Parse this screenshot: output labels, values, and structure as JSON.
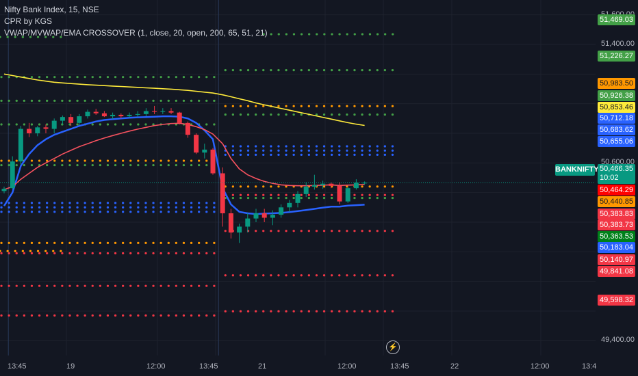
{
  "legend": {
    "symbol": "Nifty Bank Index, 15, NSE",
    "indicator1": "CPR by KGS",
    "indicator2": "VWAP/MVWAP/EMA CROSSOVER (1, close, 20, open, 200, 65, 51, 21)"
  },
  "symbol_tag": "BANKNIFTY",
  "current_price": {
    "value": "50,466.35",
    "countdown": "10:02"
  },
  "price_axis_labels": [
    "51,600.00",
    "51,400.00",
    "50,600.00",
    "49,400.00"
  ],
  "time_axis_labels": [
    "13:45",
    "19",
    "12:00",
    "13:45",
    "21",
    "12:00",
    "13:45",
    "22",
    "12:00",
    "13:4"
  ],
  "price_tags": [
    {
      "label": "51,469.03",
      "bg": "#43a047",
      "fg": "#ffffff"
    },
    {
      "label": "51,226.27",
      "bg": "#43a047",
      "fg": "#ffffff"
    },
    {
      "label": "50,983.50",
      "bg": "#ff9800",
      "fg": "#131722"
    },
    {
      "label": "50,926.38",
      "bg": "#43a047",
      "fg": "#ffffff"
    },
    {
      "label": "50,853.46",
      "bg": "#ffeb3b",
      "fg": "#131722"
    },
    {
      "label": "50,712.18",
      "bg": "#2962ff",
      "fg": "#ffffff"
    },
    {
      "label": "50,683.62",
      "bg": "#2962ff",
      "fg": "#ffffff"
    },
    {
      "label": "50,655.06",
      "bg": "#2962ff",
      "fg": "#ffffff"
    },
    {
      "label": "50,464.29",
      "bg": "#ff0000",
      "fg": "#ffffff"
    },
    {
      "label": "50,440.85",
      "bg": "#ff9800",
      "fg": "#131722"
    },
    {
      "label": "50,383.83",
      "bg": "#f23645",
      "fg": "#ffffff"
    },
    {
      "label": "50,383.73",
      "bg": "#f23645",
      "fg": "#ffffff"
    },
    {
      "label": "50,363.53",
      "bg": "#00801a",
      "fg": "#ffffff"
    },
    {
      "label": "50,183.04",
      "bg": "#2962ff",
      "fg": "#ffffff"
    },
    {
      "label": "50,140.97",
      "bg": "#f23645",
      "fg": "#ffffff"
    },
    {
      "label": "49,841.08",
      "bg": "#f23645",
      "fg": "#ffffff"
    },
    {
      "label": "49,598.32",
      "bg": "#f23645",
      "fg": "#ffffff"
    }
  ],
  "chart_data": {
    "type": "candlestick",
    "ylim": [
      49300,
      51700
    ],
    "bar_times": [
      "18 13:45",
      "19 09:15",
      "19 09:30",
      "19 09:45",
      "19 10:00",
      "19 10:15",
      "19 10:30",
      "19 10:45",
      "19 11:00",
      "19 11:15",
      "19 11:30",
      "19 11:45",
      "19 12:00",
      "19 12:15",
      "19 12:30",
      "19 12:45",
      "19 13:00",
      "19 13:15",
      "19 13:30",
      "19 13:45",
      "19 14:00",
      "19 14:15",
      "19 14:30",
      "19 14:45",
      "19 15:00",
      "19 15:15",
      "21 09:15",
      "21 09:30",
      "21 09:45",
      "21 10:00",
      "21 10:15",
      "21 10:30",
      "21 10:45",
      "21 11:00",
      "21 11:15",
      "21 11:30",
      "21 11:45",
      "21 12:00",
      "21 12:15",
      "21 12:30",
      "21 12:45",
      "21 13:00",
      "21 13:15",
      "21 13:30"
    ],
    "ohlc": [
      [
        50410,
        50440,
        50395,
        50425
      ],
      [
        50430,
        50645,
        50420,
        50610
      ],
      [
        50610,
        50850,
        50590,
        50830
      ],
      [
        50830,
        50870,
        50775,
        50800
      ],
      [
        50800,
        50850,
        50780,
        50840
      ],
      [
        50840,
        50860,
        50800,
        50830
      ],
      [
        50830,
        50900,
        50800,
        50885
      ],
      [
        50885,
        50920,
        50860,
        50910
      ],
      [
        50910,
        50930,
        50850,
        50870
      ],
      [
        50870,
        50930,
        50855,
        50915
      ],
      [
        50915,
        50960,
        50900,
        50945
      ],
      [
        50945,
        50965,
        50925,
        50935
      ],
      [
        50935,
        50950,
        50910,
        50915
      ],
      [
        50915,
        50940,
        50895,
        50925
      ],
      [
        50925,
        50935,
        50900,
        50915
      ],
      [
        50915,
        50940,
        50905,
        50925
      ],
      [
        50925,
        50950,
        50910,
        50930
      ],
      [
        50930,
        50970,
        50915,
        50950
      ],
      [
        50950,
        50985,
        50930,
        50945
      ],
      [
        50945,
        50970,
        50930,
        50950
      ],
      [
        50950,
        50970,
        50930,
        50940
      ],
      [
        50940,
        50945,
        50860,
        50870
      ],
      [
        50870,
        50880,
        50770,
        50790
      ],
      [
        50790,
        50800,
        50660,
        50670
      ],
      [
        50670,
        50730,
        50630,
        50690
      ],
      [
        50690,
        50700,
        50520,
        50530
      ],
      [
        50530,
        50570,
        50170,
        50260
      ],
      [
        50260,
        50290,
        50090,
        50130
      ],
      [
        50130,
        50190,
        50060,
        50170
      ],
      [
        50170,
        50260,
        50130,
        50225
      ],
      [
        50225,
        50290,
        50200,
        50260
      ],
      [
        50260,
        50290,
        50200,
        50230
      ],
      [
        50230,
        50280,
        50180,
        50250
      ],
      [
        50250,
        50320,
        50230,
        50300
      ],
      [
        50300,
        50350,
        50270,
        50330
      ],
      [
        50330,
        50410,
        50300,
        50390
      ],
      [
        50390,
        50470,
        50370,
        50440
      ],
      [
        50440,
        50520,
        50420,
        50450
      ],
      [
        50450,
        50480,
        50425,
        50460
      ],
      [
        50460,
        50470,
        50430,
        50445
      ],
      [
        50445,
        50470,
        50320,
        50340
      ],
      [
        50340,
        50440,
        50330,
        50430
      ],
      [
        50430,
        50490,
        50420,
        50466.35
      ],
      [
        50466.35,
        50475,
        50455,
        50466.35
      ]
    ],
    "series": [
      {
        "name": "VWAP",
        "color": "#2962ff",
        "values": [
          50310,
          50400,
          50580,
          50660,
          50720,
          50760,
          50790,
          50810,
          50830,
          50850,
          50865,
          50880,
          50890,
          50895,
          50900,
          50905,
          50908,
          50910,
          50912,
          50915,
          50915,
          50912,
          50900,
          50870,
          50820,
          50760,
          50430,
          50320,
          50270,
          50260,
          50255,
          50258,
          50260,
          50263,
          50268,
          50275,
          50282,
          50290,
          50298,
          50305,
          50305,
          50312,
          50315,
          50318
        ]
      },
      {
        "name": "MVWAP",
        "color": "#f7525f",
        "values": [
          50420,
          50440,
          50490,
          50530,
          50570,
          50600,
          50630,
          50660,
          50685,
          50710,
          50730,
          50750,
          50768,
          50785,
          50800,
          50815,
          50828,
          50840,
          50852,
          50860,
          50866,
          50868,
          50860,
          50845,
          50825,
          50795,
          50730,
          50630,
          50560,
          50520,
          50495,
          50475,
          50462,
          50452,
          50448,
          50446,
          50446,
          50448,
          50450,
          50452,
          50448,
          50450,
          50452,
          50455
        ]
      },
      {
        "name": "EMA",
        "color": "#ffeb3b",
        "values": [
          51200,
          51190,
          51180,
          51170,
          51160,
          51152,
          51145,
          51140,
          51136,
          51132,
          51128,
          51125,
          51122,
          51119,
          51116,
          51113,
          51110,
          51107,
          51104,
          51101,
          51098,
          51094,
          51090,
          51084,
          51078,
          51072,
          51060,
          51047,
          51033,
          51020,
          51005,
          50992,
          50980,
          50968,
          50956,
          50944,
          50932,
          50920,
          50908,
          50896,
          50884,
          50872,
          50862,
          50853
        ]
      }
    ],
    "cpr_levels": [
      {
        "day": 1,
        "value": 51180,
        "color": "#43a047"
      },
      {
        "day": 1,
        "value": 51020,
        "color": "#43a047"
      },
      {
        "day": 1,
        "value": 50860,
        "color": "#43a047"
      },
      {
        "day": 1,
        "value": 50615,
        "color": "#ff9800"
      },
      {
        "day": 1,
        "value": 50585,
        "color": "#43a047"
      },
      {
        "day": 1,
        "value": 50330,
        "color": "#2962ff"
      },
      {
        "day": 1,
        "value": 50300,
        "color": "#2962ff"
      },
      {
        "day": 1,
        "value": 50270,
        "color": "#2962ff"
      },
      {
        "day": 1,
        "value": 50060,
        "color": "#ff9800"
      },
      {
        "day": 1,
        "value": 49990,
        "color": "#f23645"
      },
      {
        "day": 1,
        "value": 49770,
        "color": "#f23645"
      },
      {
        "day": 1,
        "value": 49570,
        "color": "#f23645"
      },
      {
        "day": 2,
        "value": 51226.27,
        "color": "#43a047"
      },
      {
        "day": 2,
        "value": 50926.38,
        "color": "#43a047"
      },
      {
        "day": 2,
        "value": 50983.5,
        "color": "#ff9800"
      },
      {
        "day": 2,
        "value": 50712.18,
        "color": "#2962ff"
      },
      {
        "day": 2,
        "value": 50683.62,
        "color": "#2962ff"
      },
      {
        "day": 2,
        "value": 50655.06,
        "color": "#2962ff"
      },
      {
        "day": 2,
        "value": 50440.85,
        "color": "#ff9800"
      },
      {
        "day": 2,
        "value": 50363.53,
        "color": "#43a047"
      },
      {
        "day": 2,
        "value": 50383.73,
        "color": "#f23645"
      },
      {
        "day": 2,
        "value": 50140.97,
        "color": "#f23645"
      },
      {
        "day": 2,
        "value": 49841.08,
        "color": "#f23645"
      },
      {
        "day": 2,
        "value": 49598.32,
        "color": "#f23645"
      }
    ],
    "extra_levels": [
      {
        "value": 51469.03,
        "color": "#43a047"
      },
      {
        "value": 50466.35,
        "color": "#089981"
      }
    ],
    "colors": {
      "up": "#089981",
      "down": "#f23645",
      "grid": "#1e222d",
      "day_separator": "#2a2e39"
    }
  }
}
